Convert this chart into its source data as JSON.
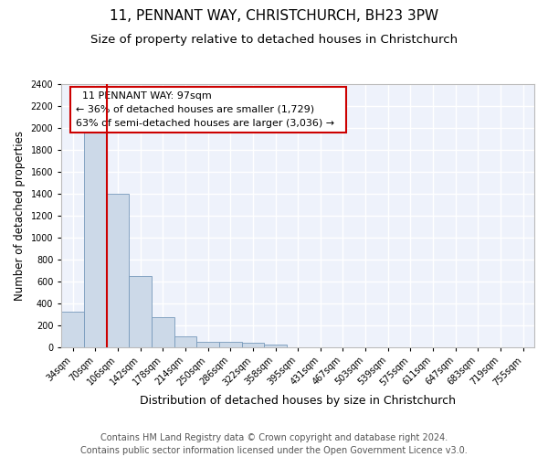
{
  "title": "11, PENNANT WAY, CHRISTCHURCH, BH23 3PW",
  "subtitle": "Size of property relative to detached houses in Christchurch",
  "xlabel": "Distribution of detached houses by size in Christchurch",
  "ylabel": "Number of detached properties",
  "bar_color": "#ccd9e8",
  "bar_edge_color": "#7799bb",
  "background_color": "#eef2fb",
  "grid_color": "white",
  "bins": [
    "34sqm",
    "70sqm",
    "106sqm",
    "142sqm",
    "178sqm",
    "214sqm",
    "250sqm",
    "286sqm",
    "322sqm",
    "358sqm",
    "395sqm",
    "431sqm",
    "467sqm",
    "503sqm",
    "539sqm",
    "575sqm",
    "611sqm",
    "647sqm",
    "683sqm",
    "719sqm",
    "755sqm"
  ],
  "values": [
    325,
    1970,
    1400,
    650,
    275,
    100,
    50,
    45,
    38,
    25,
    0,
    0,
    0,
    0,
    0,
    0,
    0,
    0,
    0,
    0,
    0
  ],
  "red_line_bin_index": 2,
  "annotation_text1": "11 PENNANT WAY: 97sqm",
  "annotation_text2": "← 36% of detached houses are smaller (1,729)",
  "annotation_text3": "63% of semi-detached houses are larger (3,036) →",
  "annotation_box_color": "white",
  "annotation_box_edge": "#cc0000",
  "red_line_color": "#cc0000",
  "ylim": [
    0,
    2400
  ],
  "yticks": [
    0,
    200,
    400,
    600,
    800,
    1000,
    1200,
    1400,
    1600,
    1800,
    2000,
    2200,
    2400
  ],
  "footer_text": "Contains HM Land Registry data © Crown copyright and database right 2024.\nContains public sector information licensed under the Open Government Licence v3.0.",
  "title_fontsize": 11,
  "subtitle_fontsize": 9.5,
  "xlabel_fontsize": 9,
  "ylabel_fontsize": 8.5,
  "tick_fontsize": 7,
  "annotation_fontsize": 8,
  "footer_fontsize": 7
}
